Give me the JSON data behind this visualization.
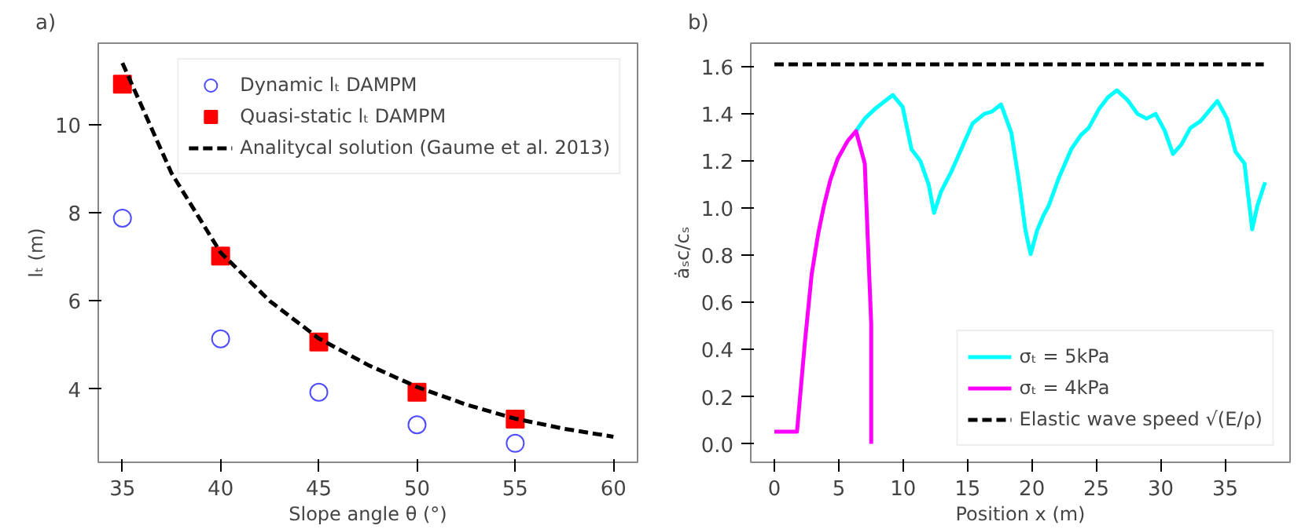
{
  "chart_data": [
    {
      "type": "scatter",
      "title": "a)",
      "xlabel": "Slope angle θ (°)",
      "ylabel": "lₜ (m)",
      "xlim": [
        33.77,
        61.23
      ],
      "ylim": [
        2.34,
        11.85
      ],
      "xticks": [
        35,
        40,
        45,
        50,
        55,
        60
      ],
      "yticks": [
        4,
        6,
        8,
        10
      ],
      "grid": false,
      "legend": "top right",
      "series": [
        {
          "name": "Dynamic lₜ DAMPM",
          "marker": "circle",
          "color": "#4d4dff",
          "x": [
            35,
            40,
            45,
            50,
            55
          ],
          "values": [
            7.88,
            5.14,
            3.93,
            3.19,
            2.77
          ]
        },
        {
          "name": "Quasi-static lₜ DAMPM",
          "marker": "square",
          "color": "#ff0000",
          "x": [
            35,
            40,
            45,
            50,
            55
          ],
          "values": [
            10.92,
            7.02,
            5.07,
            3.93,
            3.32
          ]
        },
        {
          "name": "Analitycal solution (Gaume et al. 2013)",
          "type": "line",
          "line_style": "dashed",
          "color": "#000000",
          "x": [
            35,
            37.5,
            40,
            42.5,
            45,
            47.5,
            50,
            52.5,
            55,
            57.5,
            60
          ],
          "values": [
            11.4,
            8.9,
            7.1,
            6.0,
            5.15,
            4.55,
            4.05,
            3.65,
            3.33,
            3.1,
            2.92
          ]
        }
      ]
    },
    {
      "type": "line",
      "title": "b)",
      "xlabel": "Position x (m)",
      "ylabel": "ȧₛc/cₛ",
      "xlim": [
        -1.83,
        40.04
      ],
      "ylim": [
        -0.078,
        1.7
      ],
      "xticks": [
        0,
        5,
        10,
        15,
        20,
        25,
        30,
        35
      ],
      "yticks": [
        {
          "value": 0,
          "label": "0.0"
        },
        0.2,
        0.4,
        0.6,
        0.8,
        {
          "value": 1,
          "label": "1.0"
        },
        1.2,
        1.4,
        1.6
      ],
      "grid": false,
      "legend": "bottom right",
      "series": [
        {
          "name": "σₜ = 5kPa",
          "line_style": "solid",
          "color": "#00ffff",
          "x": [
            6.34,
            7.02,
            7.79,
            9.2,
            9.96,
            10.65,
            11.34,
            11.98,
            12.4,
            12.94,
            13.7,
            15.4,
            16.3,
            16.9,
            17.6,
            18.4,
            19.0,
            19.5,
            19.9,
            20.4,
            20.9,
            21.3,
            22.1,
            23.05,
            23.8,
            24.4,
            25.2,
            25.9,
            26.6,
            27.4,
            28.2,
            28.9,
            29.6,
            30.3,
            30.95,
            31.6,
            32.3,
            33.1,
            34.4,
            35.15,
            35.8,
            36.5,
            37.1,
            37.5,
            38.1
          ],
          "values": [
            1.327,
            1.38,
            1.42,
            1.48,
            1.43,
            1.25,
            1.2,
            1.1,
            0.98,
            1.07,
            1.15,
            1.36,
            1.4,
            1.41,
            1.44,
            1.32,
            1.11,
            0.905,
            0.805,
            0.905,
            0.97,
            1.01,
            1.13,
            1.25,
            1.31,
            1.34,
            1.42,
            1.47,
            1.5,
            1.46,
            1.4,
            1.38,
            1.4,
            1.33,
            1.23,
            1.27,
            1.34,
            1.37,
            1.455,
            1.38,
            1.24,
            1.19,
            0.91,
            1.01,
            1.11
          ]
        },
        {
          "name": "σₜ = 4kPa",
          "line_style": "solid",
          "color": "#ff00ff",
          "x": [
            0,
            1.76,
            2.37,
            2.9,
            3.4,
            3.85,
            4.35,
            4.92,
            5.69,
            6.34,
            7.02,
            7.52,
            7.52
          ],
          "values": [
            0.052,
            0.052,
            0.43,
            0.72,
            0.89,
            1.01,
            1.12,
            1.21,
            1.285,
            1.327,
            1.19,
            0.51,
            0.0
          ]
        },
        {
          "name": "Elastic wave speed √(E/ρ)",
          "line_style": "dashed",
          "color": "#000000",
          "x": [
            0,
            38
          ],
          "values": [
            1.61,
            1.61
          ]
        }
      ]
    }
  ]
}
